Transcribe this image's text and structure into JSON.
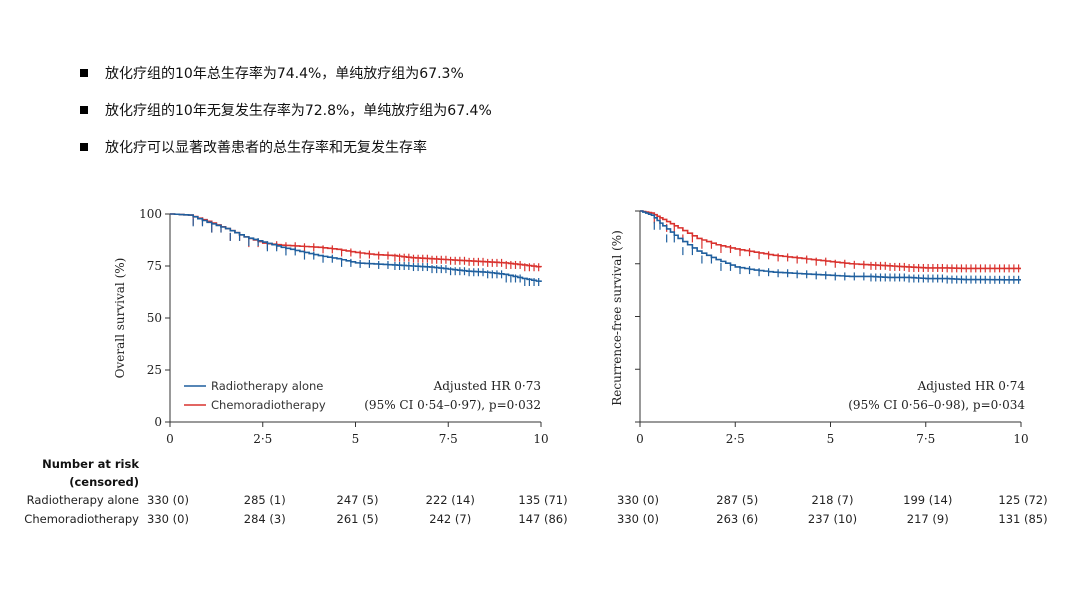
{
  "bullets": [
    "放化疗组的10年总生存率为74.4%，单纯放疗组为67.3%",
    "放化疗组的10年无复发生存率为72.8%，单纯放疗组为67.4%",
    "放化疗可以显著改善患者的总生存率和无复发生存率"
  ],
  "colors": {
    "radiotherapy": "#1f5f9e",
    "chemoradiotherapy": "#d9322e"
  },
  "risk_table": {
    "header_line1": "Number at risk",
    "header_line2": "(censored)",
    "row_labels": [
      "Radiotherapy alone",
      "Chemoradiotherapy"
    ]
  },
  "chart_data": [
    {
      "type": "line",
      "title": "",
      "xlabel": "",
      "ylabel": "Overall survival (%)",
      "xlim": [
        0,
        10
      ],
      "ylim": [
        0,
        100
      ],
      "x_ticks": [
        0,
        2.5,
        5,
        7.5,
        10
      ],
      "x_tick_labels": [
        "0",
        "2·5",
        "5",
        "7·5",
        "10"
      ],
      "y_ticks": [
        0,
        25,
        50,
        75,
        100
      ],
      "y_tick_labels": [
        "0",
        "25",
        "50",
        "75",
        "100"
      ],
      "legend": [
        "Radiotherapy alone",
        "Chemoradiotherapy"
      ],
      "legend_position": "bottom-left",
      "annotation_line1": "Adjusted HR 0·73",
      "annotation_line2": "(95% CI 0·54–0·97), p=0·032",
      "series": [
        {
          "name": "Radiotherapy alone",
          "x": [
            0,
            0.5,
            1,
            1.5,
            2,
            2.5,
            3,
            3.5,
            4,
            4.5,
            5,
            5.5,
            6,
            6.5,
            7,
            7.5,
            8,
            8.5,
            9,
            9.5,
            10
          ],
          "values": [
            100,
            99.5,
            96,
            93,
            89,
            86.5,
            84,
            82,
            80,
            78.5,
            76.5,
            76,
            75.5,
            75,
            74.5,
            73.5,
            72.5,
            72,
            71,
            69,
            67.3
          ]
        },
        {
          "name": "Chemoradiotherapy",
          "x": [
            0,
            0.5,
            1,
            1.5,
            2,
            2.5,
            3,
            3.5,
            4,
            4.5,
            5,
            5.5,
            6,
            6.5,
            7,
            7.5,
            8,
            8.5,
            9,
            9.5,
            10
          ],
          "values": [
            100,
            99.5,
            96.5,
            93,
            89,
            86,
            85,
            84.5,
            84,
            83,
            81.5,
            80.5,
            80,
            79,
            78.5,
            78,
            77.5,
            77,
            76.5,
            75.5,
            74.4
          ]
        }
      ],
      "at_risk": {
        "radiotherapy": [
          "330 (0)",
          "285 (1)",
          "247 (5)",
          "222 (14)",
          "135 (71)"
        ],
        "chemoradiotherapy": [
          "330 (0)",
          "284 (3)",
          "261 (5)",
          "242 (7)",
          "147 (86)"
        ]
      }
    },
    {
      "type": "line",
      "title": "",
      "xlabel": "",
      "ylabel": "Recurrence-free survival (%)",
      "xlim": [
        0,
        10
      ],
      "ylim": [
        0,
        100
      ],
      "x_ticks": [
        0,
        2.5,
        5,
        7.5,
        10
      ],
      "x_tick_labels": [
        "0",
        "2·5",
        "5",
        "7·5",
        "10"
      ],
      "y_ticks": [
        0,
        25,
        50,
        75,
        100
      ],
      "y_tick_labels": [
        "",
        "",
        "",
        "",
        ""
      ],
      "legend": [],
      "annotation_line1": "Adjusted HR 0·74",
      "annotation_line2": "(95% CI 0·56–0·98), p=0·034",
      "series": [
        {
          "name": "Radiotherapy alone",
          "x": [
            0,
            0.3,
            0.6,
            1,
            1.5,
            2,
            2.5,
            3,
            3.5,
            4,
            4.5,
            5,
            5.5,
            6,
            6.5,
            7,
            7.5,
            8,
            8.5,
            9,
            9.5,
            10
          ],
          "values": [
            100,
            98,
            93,
            87,
            81,
            77,
            73.5,
            72,
            71,
            70.5,
            70,
            69.5,
            69,
            69,
            68.5,
            68.5,
            68,
            68,
            67.5,
            67.5,
            67.4,
            67.4
          ]
        },
        {
          "name": "Chemoradiotherapy",
          "x": [
            0,
            0.3,
            0.6,
            1,
            1.5,
            2,
            2.5,
            3,
            3.5,
            4,
            4.5,
            5,
            5.5,
            6,
            6.5,
            7,
            7.5,
            8,
            8.5,
            9,
            9.5,
            10
          ],
          "values": [
            100,
            99,
            96,
            92,
            87,
            84,
            82,
            80.5,
            79,
            78,
            77,
            76,
            75,
            74.5,
            74,
            73.5,
            73,
            73,
            72.8,
            72.8,
            72.8,
            72.8
          ]
        }
      ],
      "at_risk": {
        "radiotherapy": [
          "330 (0)",
          "287 (5)",
          "218 (7)",
          "199 (14)",
          "125 (72)"
        ],
        "chemoradiotherapy": [
          "330 (0)",
          "263 (6)",
          "237 (10)",
          "217 (9)",
          "131 (85)"
        ]
      }
    }
  ]
}
